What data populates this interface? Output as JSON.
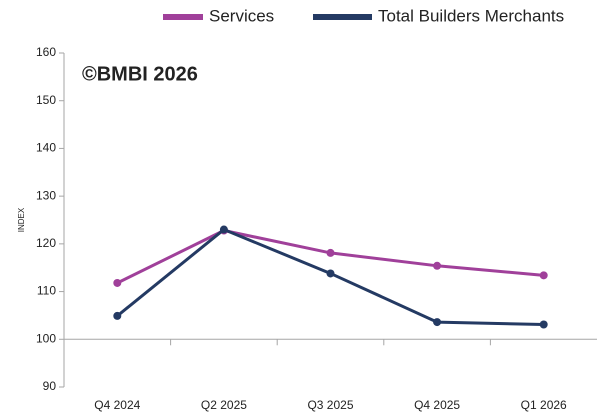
{
  "chart_data": {
    "type": "line",
    "annotation": "©BMBI 2026",
    "y_label": "INDEX",
    "categories": [
      "Q4 2024",
      "Q2 2025",
      "Q3 2025",
      "Q4 2025",
      "Q1 2026"
    ],
    "series": [
      {
        "name": "Services",
        "color": "#a0409a",
        "values": [
          111.8,
          122.8,
          118.1,
          115.4,
          113.4
        ]
      },
      {
        "name": "Total Builders Merchants",
        "color": "#243a63",
        "values": [
          104.9,
          123.0,
          113.8,
          103.6,
          103.1
        ]
      }
    ],
    "ylim": [
      90,
      160
    ],
    "yticks": [
      90,
      100,
      110,
      120,
      130,
      140,
      150,
      160
    ],
    "x_axis_crossing": 100,
    "grid": false,
    "legend": "top"
  }
}
